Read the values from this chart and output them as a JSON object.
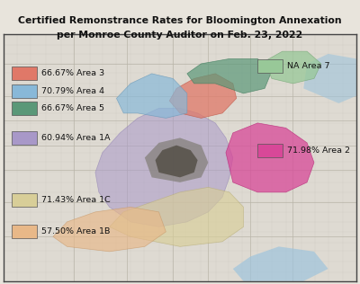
{
  "title_line1": "Certified Remonstrance Rates for Bloomington Annexation",
  "title_line2": "per Monroe County Auditor on Feb. 23, 2022",
  "title_fontsize": 7.8,
  "title_fontweight": "bold",
  "legend_items_left": [
    {
      "label": "66.67% Area 3",
      "color": "#E07868"
    },
    {
      "label": "70.79% Area 4",
      "color": "#88B8D8"
    },
    {
      "label": "66.67% Area 5",
      "color": "#5A9878"
    },
    {
      "label": "60.94% Area 1A",
      "color": "#A898C8"
    },
    {
      "label": "71.43% Area 1C",
      "color": "#D8CE98"
    },
    {
      "label": "57.50% Area 1B",
      "color": "#E8B888"
    }
  ],
  "legend_items_right": [
    {
      "label": "NA Area 7",
      "color": "#98C898"
    },
    {
      "label": "71.98% Area 2",
      "color": "#D84898"
    }
  ],
  "map_road_color": "#C8C4BC",
  "map_bg_color": "#E0DCD4",
  "map_inner_color": "#C8C4BC",
  "water_color": "#9EC4DC",
  "border_color": "#444444",
  "text_fontsize": 6.8,
  "text_color": "#111111",
  "fig_bg": "#E8E4DC"
}
